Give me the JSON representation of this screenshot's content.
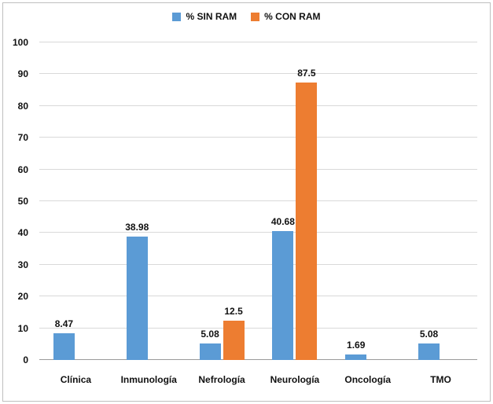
{
  "chart_data": {
    "type": "bar",
    "title": "",
    "xlabel": "",
    "ylabel": "",
    "categories": [
      "Clínica",
      "Inmunología",
      "Nefrología",
      "Neurología",
      "Oncología",
      "TMO"
    ],
    "series": [
      {
        "name": "% SIN RAM",
        "color": "#5B9BD5",
        "values": [
          8.47,
          38.98,
          5.08,
          40.68,
          1.69,
          5.08
        ]
      },
      {
        "name": "% CON RAM",
        "color": "#ED7D31",
        "values": [
          null,
          null,
          12.5,
          87.5,
          null,
          null
        ]
      }
    ],
    "ylim": [
      0,
      100
    ],
    "ytick_step": 10,
    "yticks": [
      0,
      10,
      20,
      30,
      40,
      50,
      60,
      70,
      80,
      90,
      100
    ],
    "grid": true,
    "legend_position": "top",
    "data_labels_shown": true
  },
  "style": {
    "gridline_color": "#d9d9d9",
    "axis_line_color": "#9b9b9b",
    "border_color": "#bfbfbf",
    "text_color": "#111111"
  }
}
